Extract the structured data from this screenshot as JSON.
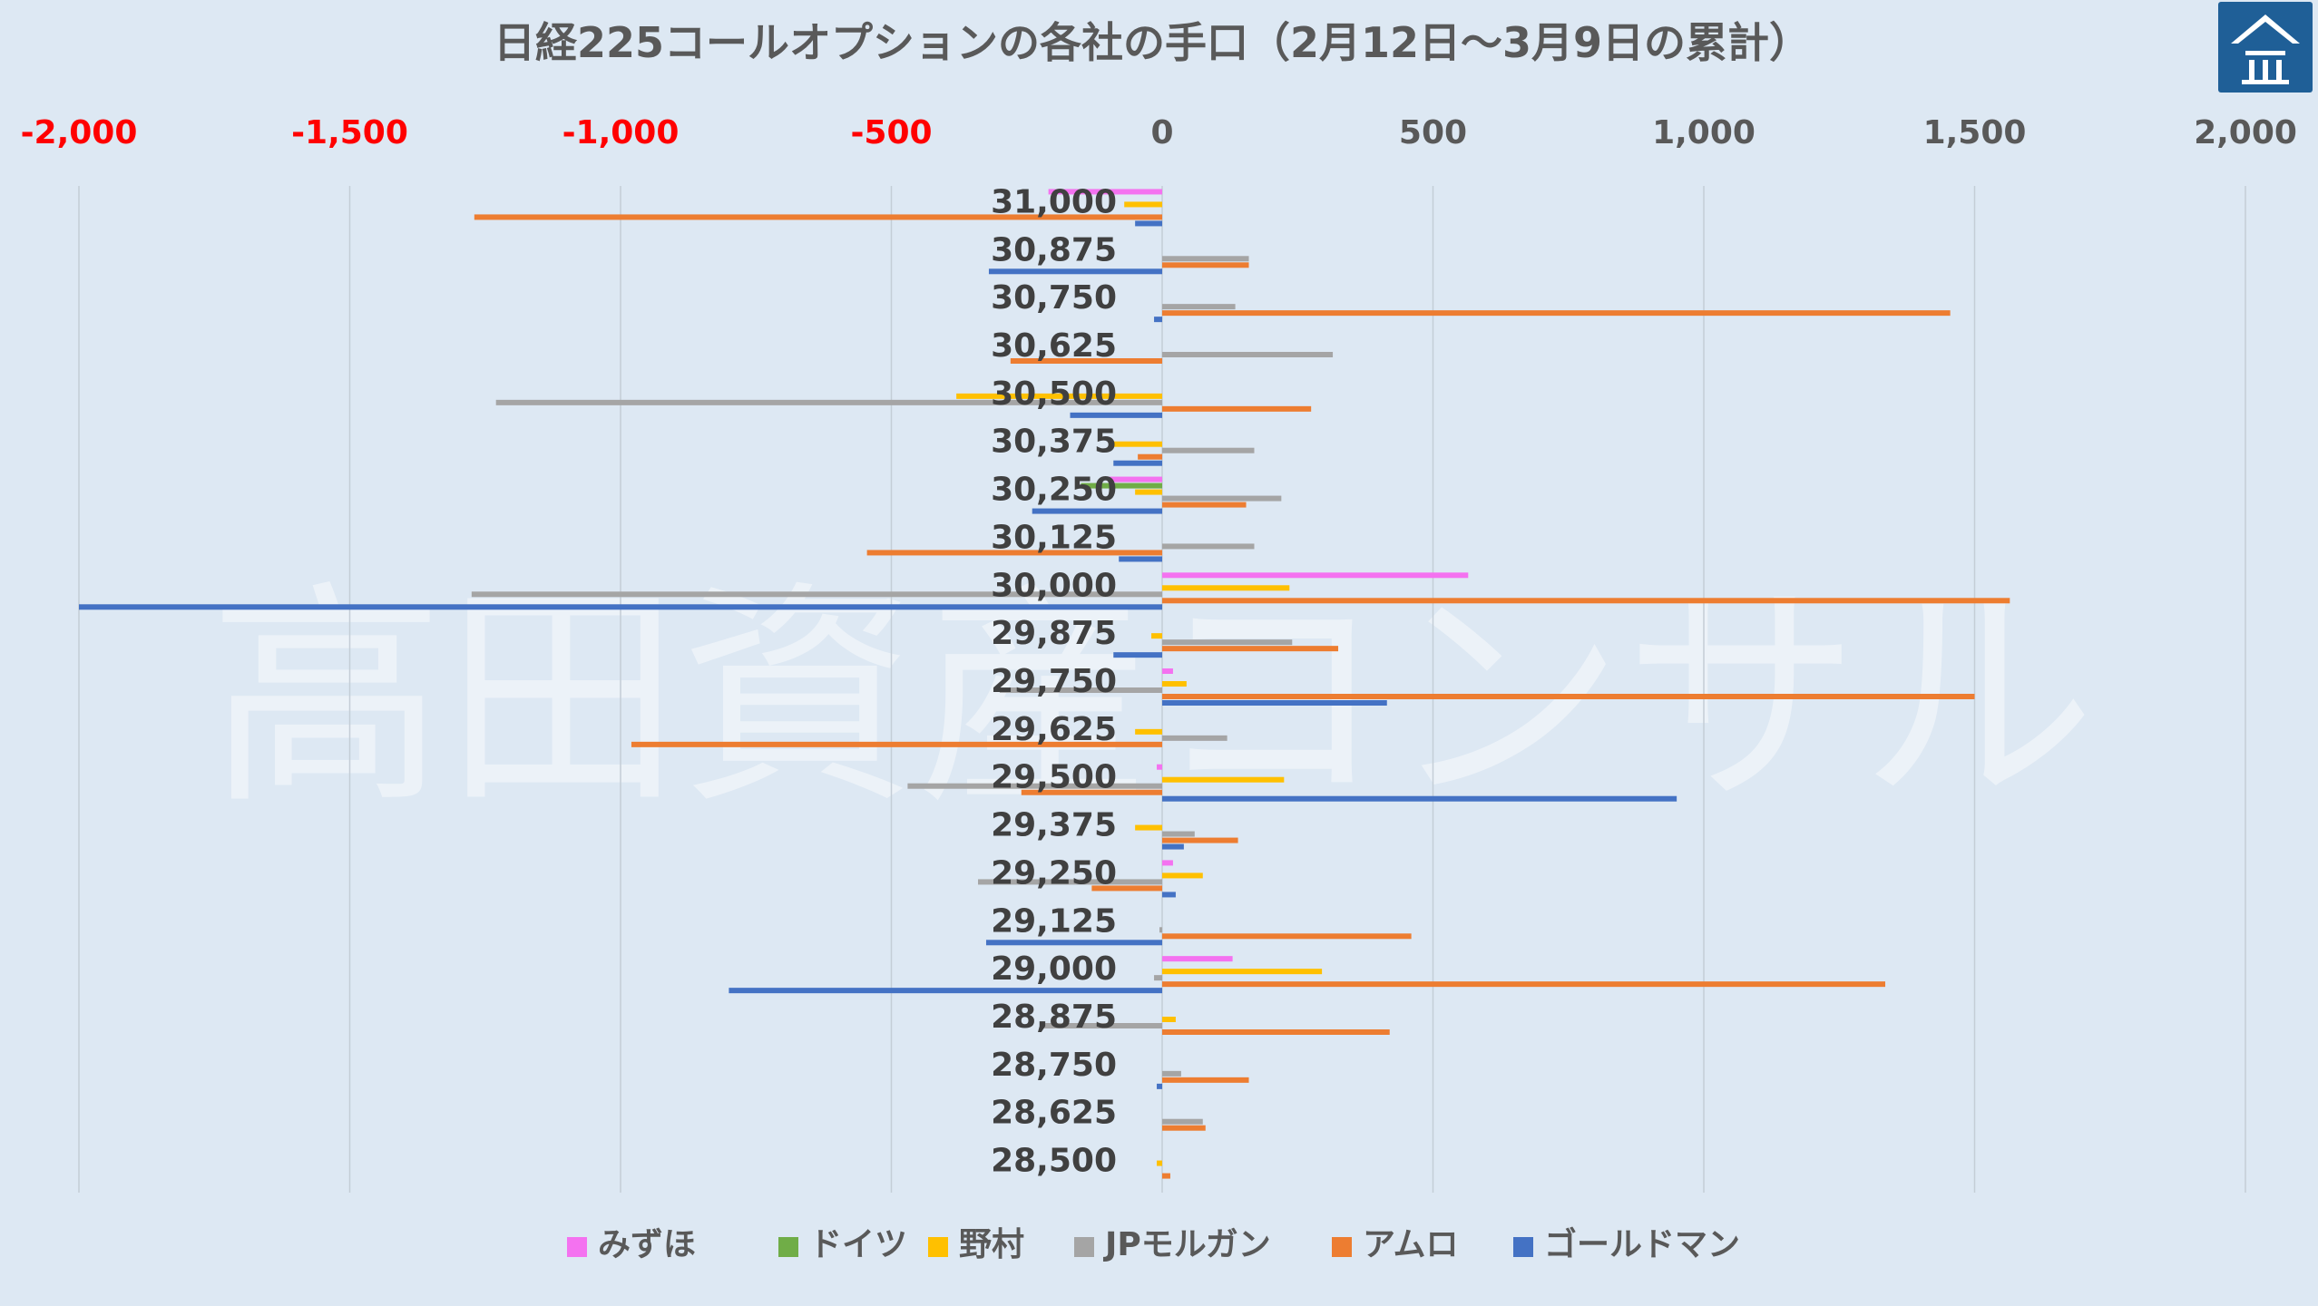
{
  "chart_data": {
    "type": "bar",
    "orientation": "horizontal",
    "title": "日経225コールオプションの各社の手口（2月12日～3月9日の累計）",
    "watermark": "高田資産コンサル",
    "xlim": [
      -2000,
      2000
    ],
    "x_ticks": [
      -2000,
      -1500,
      -1000,
      -500,
      0,
      500,
      1000,
      1500,
      2000
    ],
    "x_tick_labels": [
      "-2,000",
      "-1,500",
      "-1,000",
      "-500",
      "0",
      "500",
      "1,000",
      "1,500",
      "2,000"
    ],
    "negative_tick_color": "#ff0000",
    "positive_tick_color": "#595959",
    "categories": [
      "31,000",
      "30,875",
      "30,750",
      "30,625",
      "30,500",
      "30,375",
      "30,250",
      "30,125",
      "30,000",
      "29,875",
      "29,750",
      "29,625",
      "29,500",
      "29,375",
      "29,250",
      "29,125",
      "29,000",
      "28,875",
      "28,750",
      "28,625",
      "28,500"
    ],
    "series": [
      {
        "name": "みずほ",
        "color": "#f472f0",
        "values": [
          -210,
          0,
          0,
          0,
          0,
          0,
          -100,
          0,
          565,
          0,
          20,
          0,
          -10,
          0,
          20,
          0,
          130,
          0,
          0,
          0,
          0
        ]
      },
      {
        "name": "ドイツ",
        "color": "#70ad47",
        "values": [
          0,
          0,
          0,
          0,
          0,
          0,
          -150,
          0,
          0,
          0,
          0,
          0,
          0,
          0,
          0,
          0,
          0,
          0,
          0,
          0,
          0
        ]
      },
      {
        "name": "野村",
        "color": "#ffc000",
        "values": [
          -70,
          0,
          0,
          0,
          -380,
          -90,
          -50,
          0,
          235,
          -20,
          45,
          -50,
          225,
          -50,
          75,
          0,
          295,
          25,
          0,
          0,
          -10
        ]
      },
      {
        "name": "JPモルガン",
        "color": "#a5a5a5",
        "values": [
          0,
          160,
          135,
          315,
          -1230,
          170,
          220,
          170,
          -1275,
          240,
          -300,
          120,
          -470,
          60,
          -340,
          -5,
          -15,
          -220,
          35,
          75,
          0
        ]
      },
      {
        "name": "アムロ",
        "color": "#ed7d31",
        "values": [
          -1270,
          160,
          1455,
          -280,
          275,
          -45,
          155,
          -545,
          1565,
          325,
          1500,
          -980,
          -260,
          140,
          -130,
          460,
          1335,
          420,
          160,
          80,
          15
        ]
      },
      {
        "name": "ゴールドマン",
        "color": "#4472c4",
        "values": [
          -50,
          -320,
          -15,
          0,
          -170,
          -90,
          -240,
          -80,
          -2000,
          -90,
          415,
          0,
          950,
          40,
          25,
          -325,
          -800,
          0,
          -10,
          0,
          0
        ]
      }
    ],
    "legend": "bottom-center",
    "grid": "vertical"
  }
}
